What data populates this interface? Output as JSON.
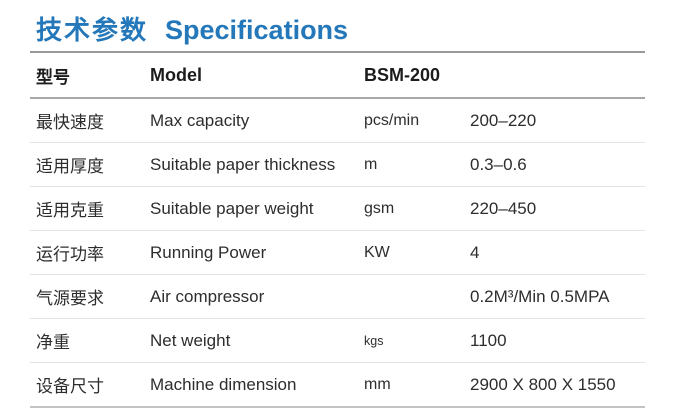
{
  "header": {
    "title_zh": "技术参数",
    "title_en": "Specifications"
  },
  "colors": {
    "accent_blue": "#2478ba",
    "body_text": "#2d2d2d",
    "header_divider": "#999999",
    "model_divider": "#a8a8a8",
    "row_divider": "#e3e3e3",
    "bottom_divider": "#c4c4c4"
  },
  "table": {
    "header": {
      "zh": "型号",
      "en": "Model",
      "model": "BSM-200"
    },
    "rows": [
      {
        "zh": "最快速度",
        "en": "Max capacity",
        "unit": "pcs/min",
        "value": "200–220"
      },
      {
        "zh": "适用厚度",
        "en": "Suitable paper thickness",
        "unit": "m",
        "value": "0.3–0.6"
      },
      {
        "zh": "适用克重",
        "en": "Suitable paper weight",
        "unit": "gsm",
        "value": "220–450"
      },
      {
        "zh": "运行功率",
        "en": "Running Power",
        "unit": "KW",
        "value": "4"
      },
      {
        "zh": "气源要求",
        "en": "Air compressor",
        "unit": "",
        "value": "0.2M³/Min 0.5MPA"
      },
      {
        "zh": "净重",
        "en": "Net weight",
        "unit": "kgs",
        "value": "1100"
      },
      {
        "zh": "设备尺寸",
        "en": "Machine dimension",
        "unit": "mm",
        "value": "2900 X 800 X 1550"
      }
    ]
  }
}
